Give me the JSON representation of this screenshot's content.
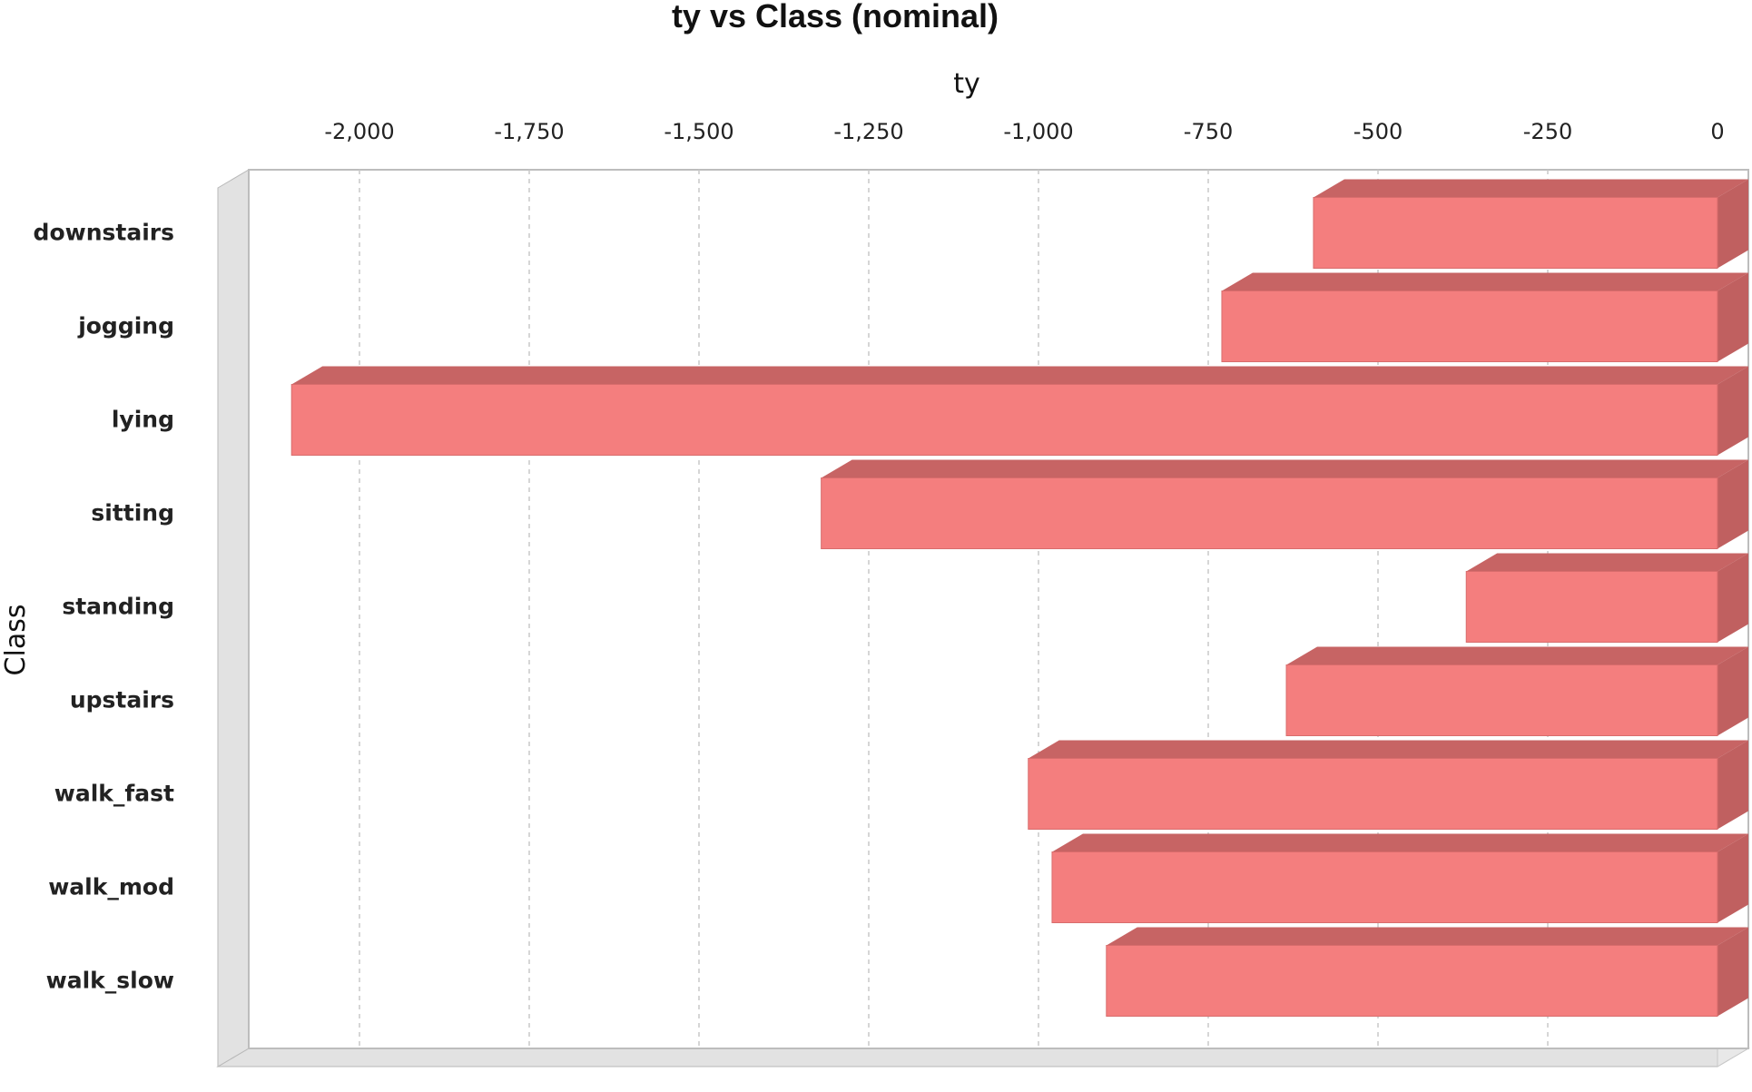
{
  "chart_data": {
    "type": "bar",
    "orientation": "horizontal",
    "title": "ty vs Class (nominal)",
    "xlabel": "ty",
    "ylabel": "Class",
    "xlim": [
      -2200,
      0
    ],
    "x_ticks": [
      -2000,
      -1750,
      -1500,
      -1250,
      -1000,
      -750,
      -500,
      -250,
      0
    ],
    "x_tick_labels": [
      "-2,000",
      "-1,750",
      "-1,500",
      "-1,250",
      "-1,000",
      "-750",
      "-500",
      "-250",
      "0"
    ],
    "x_axis_position": "top",
    "grid": "vertical dashed",
    "categories": [
      "downstairs",
      "jogging",
      "lying",
      "sitting",
      "standing",
      "upstairs",
      "walk_fast",
      "walk_mod",
      "walk_slow"
    ],
    "values": [
      -595,
      -730,
      -2100,
      -1320,
      -370,
      -635,
      -1015,
      -980,
      -900
    ],
    "colors": {
      "bar_front": "#f47e7e",
      "bar_top": "#c76464",
      "bar_side": "#c06060",
      "wall": "#e2e2e2",
      "grid": "#c8c8c8"
    }
  }
}
